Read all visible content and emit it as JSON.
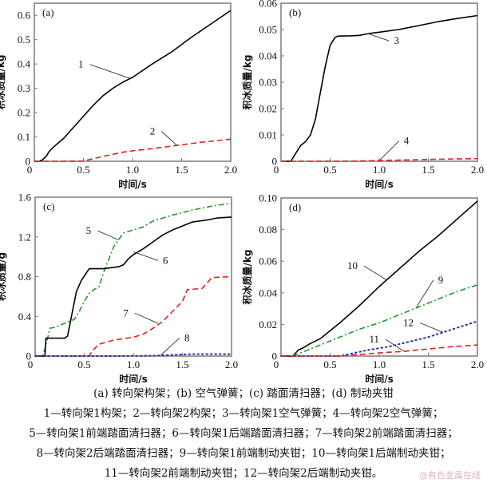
{
  "chart_data": [
    {
      "id": "a",
      "type": "line",
      "panel_label": "(a)",
      "xlabel": "时间/s",
      "ylabel": "积冰质量/kg",
      "xlim": [
        0,
        2.0
      ],
      "ylim": [
        0,
        0.65
      ],
      "xticks": [
        0,
        0.5,
        1.0,
        1.5,
        2.0
      ],
      "xtick_labels": [
        "0",
        "0.5",
        "1.0",
        "1.5",
        "2.0"
      ],
      "yticks": [
        0,
        0.1,
        0.2,
        0.3,
        0.4,
        0.5,
        0.6
      ],
      "ytick_labels": [
        "0",
        "0.1",
        "0.2",
        "0.3",
        "0.4",
        "0.5",
        "0.6"
      ],
      "series": [
        {
          "name": "1",
          "style": "solid",
          "color": "#000000",
          "x": [
            0,
            0.05,
            0.08,
            0.12,
            0.15,
            0.2,
            0.3,
            0.4,
            0.5,
            0.6,
            0.7,
            0.8,
            0.9,
            1.0,
            1.2,
            1.4,
            1.6,
            1.8,
            2.0
          ],
          "y": [
            0,
            0.0,
            0.005,
            0.02,
            0.04,
            0.06,
            0.095,
            0.14,
            0.185,
            0.23,
            0.27,
            0.3,
            0.325,
            0.345,
            0.4,
            0.45,
            0.51,
            0.565,
            0.62
          ]
        },
        {
          "name": "2",
          "style": "dashed",
          "color": "#dd2222",
          "x": [
            0,
            0.3,
            0.5,
            0.7,
            0.9,
            1.0,
            1.2,
            1.45,
            1.7,
            2.0
          ],
          "y": [
            0,
            0.0,
            0.001,
            0.02,
            0.037,
            0.043,
            0.052,
            0.065,
            0.078,
            0.091
          ]
        }
      ],
      "annotations": [
        {
          "label": "1",
          "target_x": 0.98,
          "target_y": 0.34,
          "text_x": 0.5,
          "text_y": 0.385
        },
        {
          "label": "2",
          "target_x": 1.45,
          "target_y": 0.066,
          "text_x": 1.23,
          "text_y": 0.11
        }
      ]
    },
    {
      "id": "b",
      "type": "line",
      "panel_label": "(b)",
      "xlabel": "时间/s",
      "ylabel": "积冰质量/kg",
      "xlim": [
        0,
        2.0
      ],
      "ylim": [
        0,
        0.06
      ],
      "xticks": [
        0,
        0.5,
        1.0,
        1.5,
        2.0
      ],
      "xtick_labels": [
        "0",
        "0.5",
        "1.0",
        "1.5",
        "2.0"
      ],
      "yticks": [
        0,
        0.01,
        0.02,
        0.03,
        0.04,
        0.05,
        0.06
      ],
      "ytick_labels": [
        "0",
        "0.01",
        "0.02",
        "0.03",
        "0.04",
        "0.05",
        "0.06"
      ],
      "series": [
        {
          "name": "3",
          "style": "solid",
          "color": "#000000",
          "x": [
            0,
            0.1,
            0.15,
            0.2,
            0.25,
            0.3,
            0.35,
            0.4,
            0.45,
            0.5,
            0.55,
            0.58,
            0.7,
            0.8,
            0.9,
            1.0,
            1.2,
            1.4,
            1.6,
            1.8,
            2.0
          ],
          "y": [
            0,
            0.0,
            0.003,
            0.006,
            0.0075,
            0.01,
            0.016,
            0.026,
            0.036,
            0.044,
            0.047,
            0.0475,
            0.0476,
            0.0478,
            0.0485,
            0.049,
            0.05,
            0.0515,
            0.053,
            0.0542,
            0.0553
          ]
        },
        {
          "name": "4",
          "style": "dashed",
          "color": "#dd2222",
          "x": [
            0,
            0.6,
            0.8,
            1.0,
            1.3,
            1.6,
            2.0
          ],
          "y": [
            0,
            0.0,
            0.0001,
            0.0003,
            0.0005,
            0.0008,
            0.001
          ]
        }
      ],
      "annotations": [
        {
          "label": "3",
          "target_x": 0.88,
          "target_y": 0.0485,
          "text_x": 1.15,
          "text_y": 0.0445
        },
        {
          "label": "4",
          "target_x": 1.0,
          "target_y": 0.0002,
          "text_x": 1.25,
          "text_y": 0.0065
        }
      ]
    },
    {
      "id": "c",
      "type": "line",
      "panel_label": "(c)",
      "xlabel": "时间/s",
      "ylabel": "积冰质量/g",
      "xlim": [
        0,
        2.0
      ],
      "ylim": [
        0,
        1.6
      ],
      "xticks": [
        0,
        0.5,
        1.0,
        1.5,
        2.0
      ],
      "xtick_labels": [
        "0",
        "0.5",
        "1.0",
        "1.5",
        "2.0"
      ],
      "yticks": [
        0,
        0.4,
        0.8,
        1.2,
        1.6
      ],
      "ytick_labels": [
        "0",
        "0.4",
        "0.8",
        "1.2",
        "1.6"
      ],
      "series": [
        {
          "name": "5",
          "style": "dashdot",
          "color": "#22992a",
          "x": [
            0,
            0.08,
            0.12,
            0.15,
            0.2,
            0.3,
            0.4,
            0.45,
            0.5,
            0.55,
            0.6,
            0.65,
            0.7,
            0.8,
            0.87,
            0.9,
            1.0,
            1.1,
            1.2,
            1.4,
            1.6,
            1.8,
            2.0
          ],
          "y": [
            0,
            0.0,
            0.15,
            0.28,
            0.29,
            0.33,
            0.37,
            0.45,
            0.55,
            0.63,
            0.67,
            0.7,
            0.85,
            1.1,
            1.2,
            1.24,
            1.27,
            1.3,
            1.36,
            1.42,
            1.47,
            1.51,
            1.54
          ]
        },
        {
          "name": "6",
          "style": "solid",
          "color": "#000000",
          "x": [
            0,
            0.1,
            0.11,
            0.15,
            0.3,
            0.33,
            0.37,
            0.42,
            0.47,
            0.53,
            0.55,
            0.7,
            0.85,
            0.9,
            0.95,
            1.0,
            1.1,
            1.2,
            1.3,
            1.4,
            1.5,
            1.6,
            1.75,
            1.85,
            2.0
          ],
          "y": [
            0,
            0.0,
            0.18,
            0.18,
            0.18,
            0.2,
            0.4,
            0.65,
            0.76,
            0.85,
            0.88,
            0.88,
            0.9,
            0.92,
            0.98,
            1.02,
            1.08,
            1.15,
            1.22,
            1.27,
            1.31,
            1.35,
            1.37,
            1.39,
            1.4
          ]
        },
        {
          "name": "7",
          "style": "dashed",
          "color": "#dd2222",
          "x": [
            0,
            0.55,
            0.58,
            0.65,
            0.8,
            1.0,
            1.1,
            1.2,
            1.3,
            1.4,
            1.5,
            1.55,
            1.7,
            1.8,
            2.0
          ],
          "y": [
            0,
            0.0,
            0.05,
            0.12,
            0.16,
            0.19,
            0.22,
            0.28,
            0.35,
            0.45,
            0.55,
            0.67,
            0.68,
            0.79,
            0.8
          ]
        },
        {
          "name": "8",
          "style": "dotted",
          "color": "#2233aa",
          "x": [
            0,
            0.8,
            1.2,
            1.6,
            2.0
          ],
          "y": [
            0,
            0.0,
            0.003,
            0.02,
            0.02
          ]
        }
      ],
      "annotations": [
        {
          "label": "5",
          "target_x": 0.85,
          "target_y": 1.17,
          "text_x": 0.57,
          "text_y": 1.23
        },
        {
          "label": "6",
          "target_x": 1.0,
          "target_y": 1.05,
          "text_x": 1.3,
          "text_y": 0.93
        },
        {
          "label": "7",
          "target_x": 1.25,
          "target_y": 0.33,
          "text_x": 0.95,
          "text_y": 0.4
        },
        {
          "label": "8",
          "target_x": 1.28,
          "target_y": 0.01,
          "text_x": 1.52,
          "text_y": 0.15
        }
      ]
    },
    {
      "id": "d",
      "type": "line",
      "panel_label": "(d)",
      "xlabel": "时间/s",
      "ylabel": "积冰质量/kg",
      "xlim": [
        0,
        2.0
      ],
      "ylim": [
        0,
        0.1
      ],
      "xticks": [
        0,
        0.5,
        1.0,
        1.5,
        2.0
      ],
      "xtick_labels": [
        "0",
        "0.5",
        "1.0",
        "1.5",
        "2.0"
      ],
      "yticks": [
        0,
        0.02,
        0.04,
        0.06,
        0.08,
        0.1
      ],
      "ytick_labels": [
        "0",
        "0.02",
        "0.04",
        "0.06",
        "0.08",
        "0.10"
      ],
      "series": [
        {
          "name": "10",
          "style": "solid",
          "color": "#000000",
          "x": [
            0,
            0.12,
            0.15,
            0.18,
            0.22,
            0.3,
            0.4,
            0.5,
            0.6,
            0.8,
            1.0,
            1.2,
            1.4,
            1.6,
            1.8,
            2.0
          ],
          "y": [
            0,
            0.0,
            0.002,
            0.004,
            0.005,
            0.008,
            0.011,
            0.016,
            0.021,
            0.032,
            0.044,
            0.055,
            0.066,
            0.076,
            0.087,
            0.098
          ]
        },
        {
          "name": "9",
          "style": "dashdot",
          "color": "#22992a",
          "x": [
            0,
            0.12,
            0.2,
            0.4,
            0.6,
            0.8,
            1.0,
            1.2,
            1.4,
            1.6,
            1.8,
            2.0
          ],
          "y": [
            0,
            0.0,
            0.002,
            0.007,
            0.012,
            0.017,
            0.021,
            0.026,
            0.031,
            0.036,
            0.041,
            0.045
          ]
        },
        {
          "name": "12",
          "style": "dotted",
          "color": "#2233aa",
          "x": [
            0,
            0.6,
            0.75,
            0.9,
            1.1,
            1.3,
            1.5,
            1.7,
            2.0
          ],
          "y": [
            0,
            0.0,
            0.002,
            0.004,
            0.006,
            0.009,
            0.012,
            0.016,
            0.022
          ]
        },
        {
          "name": "11",
          "style": "dashed",
          "color": "#dd2222",
          "x": [
            0,
            0.6,
            0.8,
            1.0,
            1.25,
            1.5,
            1.75,
            2.0
          ],
          "y": [
            0,
            0.0,
            0.001,
            0.002,
            0.003,
            0.0045,
            0.006,
            0.007
          ]
        }
      ],
      "annotations": [
        {
          "label": "10",
          "target_x": 1.08,
          "target_y": 0.048,
          "text_x": 0.78,
          "text_y": 0.055
        },
        {
          "label": "9",
          "target_x": 1.38,
          "target_y": 0.031,
          "text_x": 1.6,
          "text_y": 0.046
        },
        {
          "label": "12",
          "target_x": 1.65,
          "target_y": 0.015,
          "text_x": 1.35,
          "text_y": 0.019
        },
        {
          "label": "11",
          "target_x": 1.25,
          "target_y": 0.003,
          "text_x": 1.0,
          "text_y": 0.0085
        }
      ]
    }
  ],
  "captions": [
    "(a) 转向架构架；(b) 空气弹簧；(c) 踏面清扫器；(d) 制动夹钳",
    "1—转向架1构架；2—转向架2构架；3—转向架1空气弹簧；4—转向架2空气弹簧；",
    "5—转向架1前端踏面清扫器；6—转向架1后端踏面清扫器；7—转向架2前端踏面清扫器；",
    "8—转向架2后端踏面清扫器；9—转向架1前端制动夹钳；10—转向架1后端制动夹钳；",
    "11—转向架2前端制动夹钳；12—转向架2后端制动夹钳。"
  ],
  "watermark": "@有色金属在线"
}
